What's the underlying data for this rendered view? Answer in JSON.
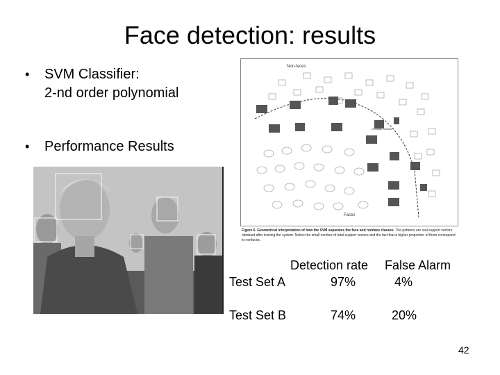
{
  "slide": {
    "title": "Face detection: results",
    "bullets": [
      {
        "line1": "SVM Classifier:",
        "line2": "2-nd order polynomial"
      },
      {
        "line1": "Performance Results"
      }
    ],
    "page_number": "42"
  },
  "figure": {
    "label_nonfaces": "Non-faces",
    "label_faces": "Faces",
    "label_boundary": "Decision Surface",
    "caption_bold": "Figure 6. Geometrical interpretation of how the SVM separates the face and nonface classes.",
    "caption_rest": " The patterns are real support vectors obtained after training the system. Notice the small number of total support vectors and the fact that a higher proportion of them correspond to nonfaces."
  },
  "table": {
    "headers": [
      "Detection rate",
      "False Alarm"
    ],
    "rows": [
      {
        "label": "Test Set A",
        "detection": "97%",
        "false_alarm": "4%"
      },
      {
        "label": "Test Set B",
        "detection": "74%",
        "false_alarm": "20%"
      }
    ]
  },
  "colors": {
    "text": "#000000",
    "background": "#ffffff",
    "box": "#999999"
  }
}
